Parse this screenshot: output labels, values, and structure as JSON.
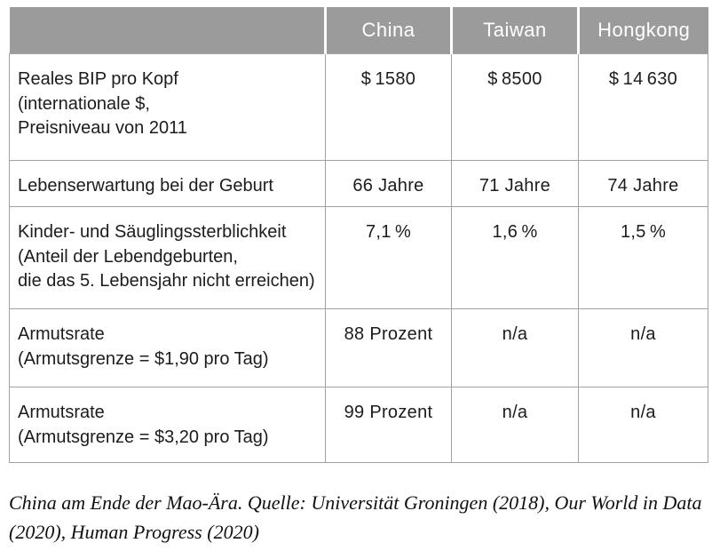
{
  "table": {
    "header": {
      "empty": "",
      "columns": [
        "China",
        "Taiwan",
        "Hongkong"
      ]
    },
    "rows": [
      {
        "label": "Reales BIP pro Kopf\n(internationale $,\nPreisniveau von 2011",
        "values": [
          "$ 1580",
          "$ 8500",
          "$ 14 630"
        ]
      },
      {
        "label": "Lebenserwartung bei der Geburt",
        "values": [
          "66 Jahre",
          "71 Jahre",
          "74 Jahre"
        ]
      },
      {
        "label": "Kinder- und Säuglingssterblichkeit\n(Anteil der Lebendgeburten,\ndie das 5. Lebensjahr nicht erreichen)",
        "values": [
          "7,1 %",
          "1,6 %",
          "1,5 %"
        ]
      },
      {
        "label": "Armutsrate\n(Armutsgrenze = $1,90 pro Tag)",
        "values": [
          "88 Prozent",
          "n/a",
          "n/a"
        ]
      },
      {
        "label": "Armutsrate\n(Armutsgrenze = $3,20 pro Tag)",
        "values": [
          "99 Prozent",
          "n/a",
          "n/a"
        ]
      }
    ]
  },
  "caption": "China am Ende der Mao-Ära. Quelle: Universität Groningen (2018), Our World in Data (2020), Human Progress (2020)",
  "colors": {
    "header_bg": "#9b9b9b",
    "header_text": "#ffffff",
    "border": "#a2a2a2",
    "body_text": "#1c1c1c"
  }
}
